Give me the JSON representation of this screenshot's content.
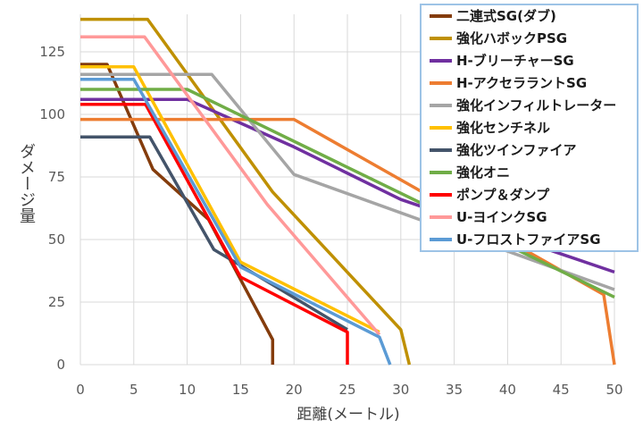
{
  "chart_data": {
    "type": "line",
    "xlabel": "距離(メートル)",
    "ylabel": "ダメージ量",
    "xlim": [
      0,
      50
    ],
    "ylim": [
      0,
      140
    ],
    "xticks": [
      0,
      5,
      10,
      15,
      20,
      25,
      30,
      35,
      40,
      45,
      50
    ],
    "yticks": [
      0,
      25,
      50,
      75,
      100,
      125
    ],
    "grid": true,
    "legend": "top-right",
    "series": [
      {
        "name": "二連式SG(ダブ)",
        "color": "#843C0C",
        "points": [
          [
            0,
            120
          ],
          [
            2.5,
            120
          ],
          [
            6.8,
            78
          ],
          [
            12,
            58
          ],
          [
            18,
            10
          ],
          [
            18,
            0
          ]
        ]
      },
      {
        "name": "強化ハボックPSG",
        "color": "#BF9000",
        "points": [
          [
            0,
            138
          ],
          [
            6.3,
            138
          ],
          [
            18,
            69
          ],
          [
            30,
            14
          ],
          [
            30.8,
            0
          ]
        ]
      },
      {
        "name": "H-ブリーチャーSG",
        "color": "#7030A0",
        "points": [
          [
            0,
            106
          ],
          [
            10,
            106
          ],
          [
            20,
            87
          ],
          [
            30,
            66
          ],
          [
            50,
            37
          ]
        ]
      },
      {
        "name": "H-アクセララントSG",
        "color": "#ED7D31",
        "points": [
          [
            0,
            98
          ],
          [
            20,
            98
          ],
          [
            49,
            28
          ],
          [
            50,
            0
          ]
        ]
      },
      {
        "name": "強化インフィルトレーター",
        "color": "#A5A5A5",
        "points": [
          [
            0,
            116
          ],
          [
            12.3,
            116
          ],
          [
            20,
            76
          ],
          [
            50,
            30
          ]
        ]
      },
      {
        "name": "強化センチネル",
        "color": "#FFC000",
        "points": [
          [
            0,
            119
          ],
          [
            5,
            119
          ],
          [
            15,
            41
          ],
          [
            28,
            13
          ]
        ]
      },
      {
        "name": "強化ツインファイア",
        "color": "#44546A",
        "points": [
          [
            0,
            91
          ],
          [
            6.5,
            91
          ],
          [
            12.5,
            46
          ],
          [
            25,
            14
          ]
        ]
      },
      {
        "name": "強化オニ",
        "color": "#70AD47",
        "points": [
          [
            0,
            110
          ],
          [
            10,
            110
          ],
          [
            50,
            27
          ]
        ]
      },
      {
        "name": "ポンプ＆ダンプ",
        "color": "#FF0000",
        "points": [
          [
            0,
            104
          ],
          [
            6.1,
            104
          ],
          [
            15,
            35
          ],
          [
            25,
            13
          ],
          [
            25,
            0
          ]
        ]
      },
      {
        "name": "U-ヨインクSG",
        "color": "#FF9999",
        "points": [
          [
            0,
            131
          ],
          [
            6,
            131
          ],
          [
            17.5,
            64
          ],
          [
            28,
            12
          ]
        ]
      },
      {
        "name": "U-フロストファイアSG",
        "color": "#5B9BD5",
        "points": [
          [
            0,
            114
          ],
          [
            5,
            114
          ],
          [
            15,
            39
          ],
          [
            28,
            11
          ],
          [
            29,
            0
          ]
        ]
      }
    ]
  }
}
